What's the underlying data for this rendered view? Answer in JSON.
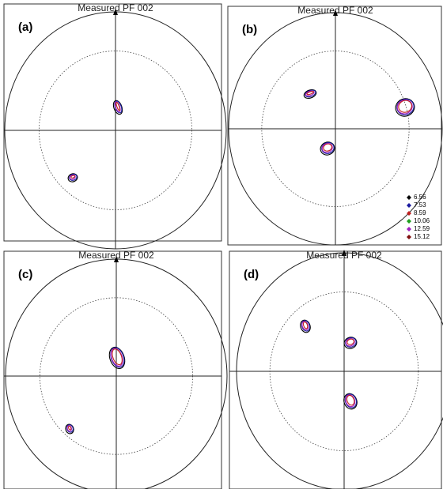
{
  "panels": [
    {
      "label": "(a)",
      "title": "Measured PF 002"
    },
    {
      "label": "(b)",
      "title": "Measured PF 002"
    },
    {
      "label": "(c)",
      "title": "Measured PF 002"
    },
    {
      "label": "(d)",
      "title": "Measured PF 002"
    }
  ],
  "legend": {
    "levels": [
      {
        "value": 6.56,
        "color": "#000000"
      },
      {
        "value": 7.53,
        "color": "#1a1aa0"
      },
      {
        "value": 8.59,
        "color": "#c02020"
      },
      {
        "value": 10.06,
        "color": "#20a020"
      },
      {
        "value": 12.59,
        "color": "#a020c0"
      },
      {
        "value": 15.12,
        "color": "#801010"
      }
    ]
  }
}
